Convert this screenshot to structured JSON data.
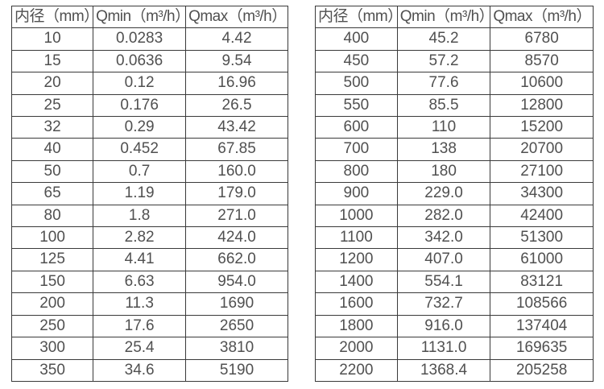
{
  "page": {
    "background": "#ffffff",
    "text_color": "#505050",
    "border_color": "#3a3a3a"
  },
  "tables": [
    {
      "name": "small-diameter-specs",
      "headers": [
        "内径（mm）",
        "Qmin（m³/h）",
        "Qmax（m³/h）"
      ],
      "rows": [
        [
          "10",
          "0.0283",
          "4.42"
        ],
        [
          "15",
          "0.0636",
          "9.54"
        ],
        [
          "20",
          "0.12",
          "16.96"
        ],
        [
          "25",
          "0.176",
          "26.5"
        ],
        [
          "32",
          "0.29",
          "43.42"
        ],
        [
          "40",
          "0.452",
          "67.85"
        ],
        [
          "50",
          "0.7",
          "160.0"
        ],
        [
          "65",
          "1.19",
          "179.0"
        ],
        [
          "80",
          "1.8",
          "271.0"
        ],
        [
          "100",
          "2.82",
          "424.0"
        ],
        [
          "125",
          "4.41",
          "662.0"
        ],
        [
          "150",
          "6.63",
          "954.0"
        ],
        [
          "200",
          "11.3",
          "1690"
        ],
        [
          "250",
          "17.6",
          "2650"
        ],
        [
          "300",
          "25.4",
          "3810"
        ],
        [
          "350",
          "34.6",
          "5190"
        ]
      ]
    },
    {
      "name": "large-diameter-specs",
      "headers": [
        "内径（mm）",
        "Qmin（m³/h）",
        "Qmax（m³/h）"
      ],
      "rows": [
        [
          "400",
          "45.2",
          "6780"
        ],
        [
          "450",
          "57.2",
          "8570"
        ],
        [
          "500",
          "77.6",
          "10600"
        ],
        [
          "550",
          "85.5",
          "12800"
        ],
        [
          "600",
          "110",
          "15200"
        ],
        [
          "700",
          "138",
          "20700"
        ],
        [
          "800",
          "180",
          "27100"
        ],
        [
          "900",
          "229.0",
          "34300"
        ],
        [
          "1000",
          "282.0",
          "42400"
        ],
        [
          "1100",
          "342.0",
          "51300"
        ],
        [
          "1200",
          "407.0",
          "61000"
        ],
        [
          "1400",
          "554.1",
          "83121"
        ],
        [
          "1600",
          "732.7",
          "108566"
        ],
        [
          "1800",
          "916.0",
          "137404"
        ],
        [
          "2000",
          "1131.0",
          "169635"
        ],
        [
          "2200",
          "1368.4",
          "205258"
        ]
      ]
    }
  ]
}
